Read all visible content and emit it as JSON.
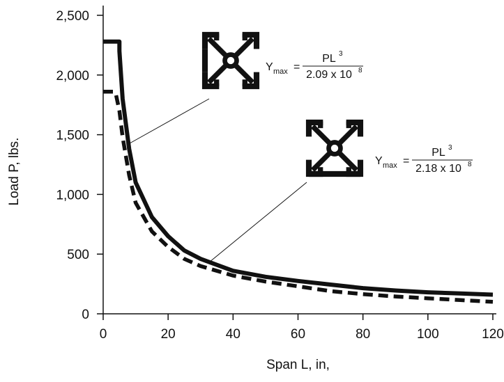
{
  "chart_data": {
    "type": "line",
    "title": "",
    "xlabel": "Span L, in,",
    "ylabel": "Load P, lbs.",
    "xlim": [
      0,
      120
    ],
    "ylim": [
      0,
      2500
    ],
    "x_ticks": [
      0,
      20,
      40,
      60,
      80,
      100,
      120
    ],
    "x_tick_labels": [
      "0",
      "20",
      "40",
      "60",
      "80",
      "100",
      "120"
    ],
    "y_ticks": [
      0,
      500,
      1000,
      1500,
      2000,
      2500
    ],
    "y_tick_labels": [
      "0",
      "500",
      "1,000",
      "1,500",
      "2,000",
      "2,500"
    ],
    "grid": false,
    "series": [
      {
        "style": "solid",
        "color": "#111111",
        "x": [
          0,
          5,
          5,
          6,
          8,
          10,
          15,
          20,
          25,
          30,
          40,
          50,
          60,
          70,
          80,
          90,
          100,
          110,
          120
        ],
        "y": [
          2280,
          2280,
          2200,
          1800,
          1380,
          1100,
          810,
          650,
          530,
          460,
          360,
          310,
          275,
          245,
          215,
          195,
          180,
          170,
          160
        ],
        "annotation": {
          "ymax_label": "Y",
          "ymax_sub": "max",
          "equals": "=",
          "numerator": "PL",
          "numerator_sup": "3",
          "denominator": "2.09 x 10",
          "denominator_sup": "8",
          "icon": "aluminum-extrusion-profile-two-slot-sides"
        }
      },
      {
        "style": "dashed",
        "color": "#111111",
        "x": [
          0,
          3.5,
          4,
          5,
          6,
          8,
          10,
          15,
          20,
          25,
          30,
          40,
          50,
          60,
          70,
          80,
          90,
          100,
          110,
          120
        ],
        "y": [
          1860,
          1860,
          1830,
          1700,
          1480,
          1160,
          930,
          690,
          560,
          460,
          400,
          320,
          270,
          230,
          190,
          165,
          145,
          130,
          115,
          100
        ],
        "annotation": {
          "ymax_label": "Y",
          "ymax_sub": "max",
          "equals": "=",
          "numerator": "PL",
          "numerator_sup": "3",
          "denominator": "2.18 x 10",
          "denominator_sup": "8",
          "icon": "aluminum-extrusion-profile-three-slot-sides"
        }
      }
    ]
  }
}
